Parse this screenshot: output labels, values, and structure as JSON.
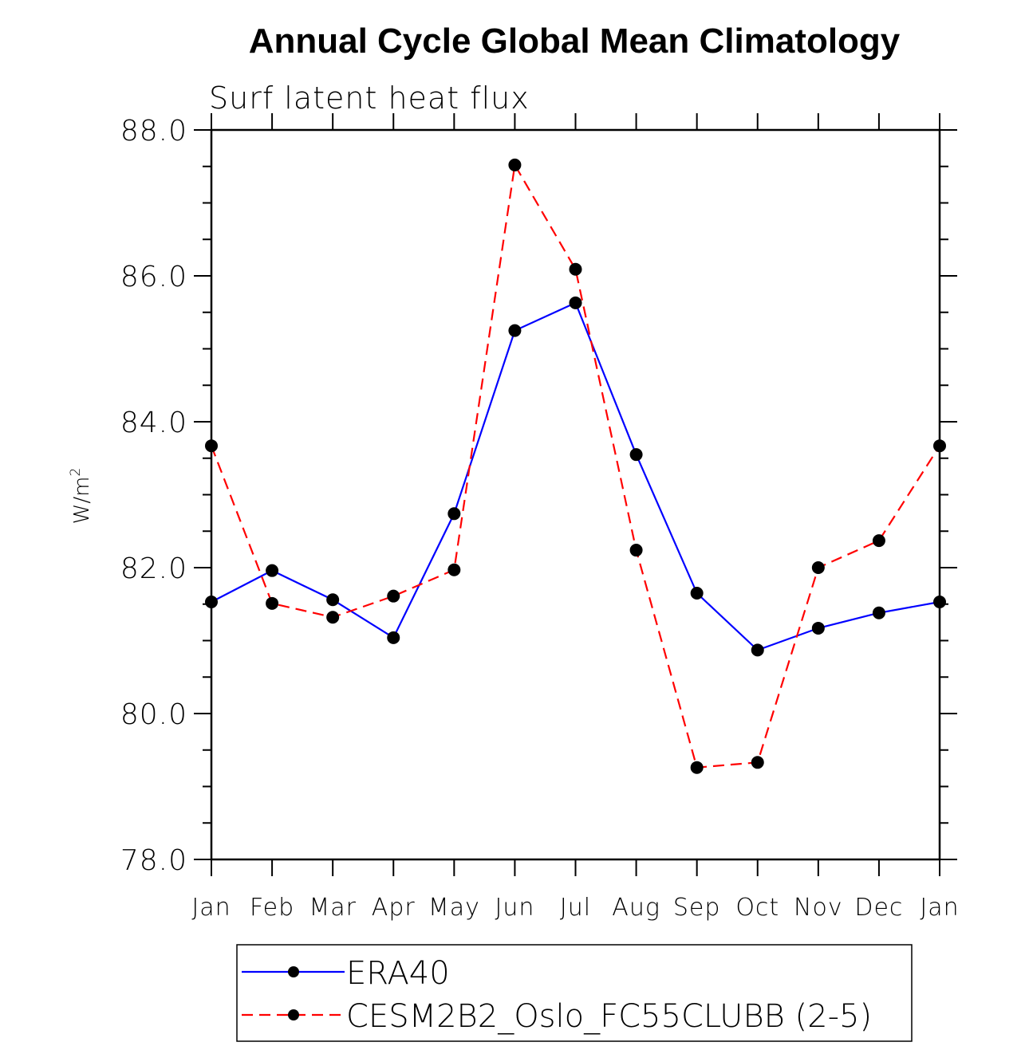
{
  "chart_data": {
    "type": "line",
    "title": "Annual Cycle Global Mean Climatology",
    "subtitle": "Surf latent heat flux",
    "xlabel": "",
    "ylabel": "W/m",
    "ylabel_sup": "2",
    "categories": [
      "Jan",
      "Feb",
      "Mar",
      "Apr",
      "May",
      "Jun",
      "Jul",
      "Aug",
      "Sep",
      "Oct",
      "Nov",
      "Dec",
      "Jan"
    ],
    "ylim": [
      78.0,
      88.0
    ],
    "y_major_ticks": [
      78.0,
      80.0,
      82.0,
      84.0,
      86.0,
      88.0
    ],
    "y_tick_labels": [
      "78.0",
      "80.0",
      "82.0",
      "84.0",
      "86.0",
      "88.0"
    ],
    "y_minor_step": 0.5,
    "grid": false,
    "legend_position": "bottom",
    "series": [
      {
        "name": "ERA40",
        "color": "#0000ff",
        "dash": "solid",
        "marker": "filled-circle",
        "values": [
          81.53,
          81.96,
          81.56,
          81.04,
          82.74,
          85.25,
          85.63,
          83.55,
          81.65,
          80.87,
          81.17,
          81.38,
          81.53
        ]
      },
      {
        "name": "CESM2B2_Oslo_FC55CLUBB (2-5)",
        "color": "#ff0000",
        "dash": "dashed",
        "marker": "filled-circle",
        "values": [
          83.67,
          81.51,
          81.32,
          81.61,
          81.97,
          87.52,
          86.09,
          82.24,
          79.26,
          79.33,
          82.0,
          82.37,
          83.67
        ]
      }
    ]
  }
}
